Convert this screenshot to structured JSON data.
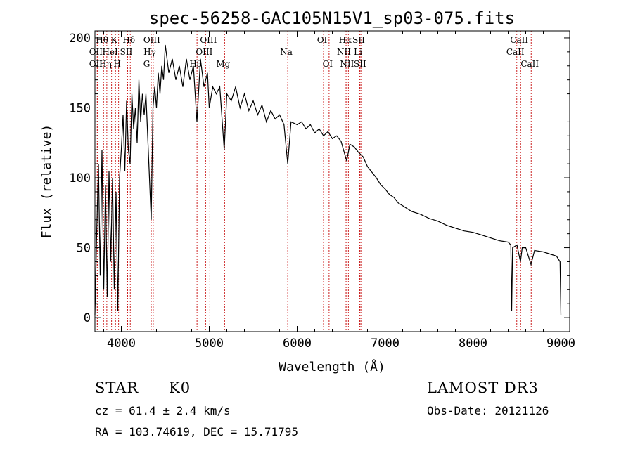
{
  "chart_data": {
    "type": "line",
    "title": "spec-56258-GAC105N15V1_sp03-075.fits",
    "xlabel": "Wavelength (Å)",
    "ylabel": "Flux (relative)",
    "xlim": [
      3700,
      9100
    ],
    "ylim": [
      -10,
      205
    ],
    "xticks": [
      4000,
      5000,
      6000,
      7000,
      8000,
      9000
    ],
    "yticks": [
      0,
      50,
      100,
      150,
      200
    ],
    "xtick_labels": [
      "4000",
      "5000",
      "6000",
      "7000",
      "8000",
      "9000"
    ],
    "ytick_labels": [
      "0",
      "50",
      "100",
      "150",
      "200"
    ],
    "series": [
      {
        "name": "spectrum",
        "points": [
          [
            3700,
            2
          ],
          [
            3720,
            60
          ],
          [
            3740,
            110
          ],
          [
            3760,
            30
          ],
          [
            3780,
            120
          ],
          [
            3800,
            20
          ],
          [
            3820,
            95
          ],
          [
            3840,
            15
          ],
          [
            3860,
            105
          ],
          [
            3880,
            40
          ],
          [
            3900,
            100
          ],
          [
            3920,
            20
          ],
          [
            3940,
            90
          ],
          [
            3960,
            5
          ],
          [
            3980,
            100
          ],
          [
            4000,
            120
          ],
          [
            4020,
            145
          ],
          [
            4040,
            105
          ],
          [
            4060,
            155
          ],
          [
            4080,
            120
          ],
          [
            4100,
            110
          ],
          [
            4120,
            160
          ],
          [
            4140,
            135
          ],
          [
            4160,
            150
          ],
          [
            4180,
            125
          ],
          [
            4200,
            170
          ],
          [
            4220,
            140
          ],
          [
            4240,
            160
          ],
          [
            4260,
            145
          ],
          [
            4280,
            160
          ],
          [
            4300,
            130
          ],
          [
            4320,
            100
          ],
          [
            4340,
            70
          ],
          [
            4360,
            150
          ],
          [
            4380,
            165
          ],
          [
            4400,
            150
          ],
          [
            4420,
            175
          ],
          [
            4440,
            160
          ],
          [
            4460,
            180
          ],
          [
            4480,
            170
          ],
          [
            4500,
            195
          ],
          [
            4540,
            175
          ],
          [
            4580,
            185
          ],
          [
            4620,
            170
          ],
          [
            4660,
            180
          ],
          [
            4700,
            165
          ],
          [
            4740,
            185
          ],
          [
            4780,
            170
          ],
          [
            4820,
            180
          ],
          [
            4860,
            140
          ],
          [
            4900,
            185
          ],
          [
            4940,
            165
          ],
          [
            4980,
            175
          ],
          [
            5000,
            150
          ],
          [
            5040,
            165
          ],
          [
            5080,
            160
          ],
          [
            5120,
            165
          ],
          [
            5170,
            120
          ],
          [
            5200,
            160
          ],
          [
            5250,
            155
          ],
          [
            5300,
            165
          ],
          [
            5350,
            150
          ],
          [
            5400,
            160
          ],
          [
            5450,
            148
          ],
          [
            5500,
            155
          ],
          [
            5550,
            145
          ],
          [
            5600,
            152
          ],
          [
            5650,
            140
          ],
          [
            5700,
            148
          ],
          [
            5750,
            142
          ],
          [
            5800,
            145
          ],
          [
            5850,
            138
          ],
          [
            5893,
            110
          ],
          [
            5930,
            140
          ],
          [
            6000,
            138
          ],
          [
            6050,
            140
          ],
          [
            6100,
            135
          ],
          [
            6150,
            138
          ],
          [
            6200,
            132
          ],
          [
            6250,
            135
          ],
          [
            6300,
            130
          ],
          [
            6350,
            133
          ],
          [
            6400,
            128
          ],
          [
            6450,
            130
          ],
          [
            6500,
            126
          ],
          [
            6563,
            112
          ],
          [
            6600,
            124
          ],
          [
            6650,
            122
          ],
          [
            6700,
            118
          ],
          [
            6750,
            115
          ],
          [
            6800,
            108
          ],
          [
            6850,
            104
          ],
          [
            6900,
            100
          ],
          [
            6950,
            95
          ],
          [
            7000,
            92
          ],
          [
            7050,
            88
          ],
          [
            7100,
            86
          ],
          [
            7150,
            82
          ],
          [
            7200,
            80
          ],
          [
            7300,
            76
          ],
          [
            7400,
            74
          ],
          [
            7500,
            71
          ],
          [
            7600,
            69
          ],
          [
            7700,
            66
          ],
          [
            7800,
            64
          ],
          [
            7900,
            62
          ],
          [
            8000,
            61
          ],
          [
            8100,
            59
          ],
          [
            8200,
            57
          ],
          [
            8300,
            55
          ],
          [
            8400,
            54
          ],
          [
            8430,
            52
          ],
          [
            8440,
            5
          ],
          [
            8450,
            50
          ],
          [
            8500,
            52
          ],
          [
            8540,
            40
          ],
          [
            8560,
            50
          ],
          [
            8600,
            50
          ],
          [
            8660,
            38
          ],
          [
            8700,
            48
          ],
          [
            8800,
            47
          ],
          [
            8900,
            45
          ],
          [
            8950,
            44
          ],
          [
            8990,
            40
          ],
          [
            9000,
            2
          ]
        ]
      }
    ],
    "line_markers": [
      {
        "label": "Hθ",
        "wavelength": 3798,
        "row": 0
      },
      {
        "label": "OII",
        "wavelength": 3727,
        "row": 1
      },
      {
        "label": "OII",
        "wavelength": 3727,
        "row": 2
      },
      {
        "label": "Hη",
        "wavelength": 3835,
        "row": 2
      },
      {
        "label": "K",
        "wavelength": 3934,
        "row": 0
      },
      {
        "label": "HeI",
        "wavelength": 3889,
        "row": 1
      },
      {
        "label": "H",
        "wavelength": 3969,
        "row": 2
      },
      {
        "label": "Hδ",
        "wavelength": 4102,
        "row": 0
      },
      {
        "label": "SII",
        "wavelength": 4072,
        "row": 1
      },
      {
        "label": "OIII",
        "wavelength": 4363,
        "row": 0
      },
      {
        "label": "Hγ",
        "wavelength": 4340,
        "row": 1
      },
      {
        "label": "G",
        "wavelength": 4304,
        "row": 2
      },
      {
        "label": "OIII",
        "wavelength": 5007,
        "row": 0
      },
      {
        "label": "OIII",
        "wavelength": 4959,
        "row": 1
      },
      {
        "label": "Hβ",
        "wavelength": 4861,
        "row": 2
      },
      {
        "label": "Mg",
        "wavelength": 5175,
        "row": 2
      },
      {
        "label": "Na",
        "wavelength": 5893,
        "row": 1
      },
      {
        "label": "OI",
        "wavelength": 6300,
        "row": 0
      },
      {
        "label": "OI",
        "wavelength": 6363,
        "row": 2
      },
      {
        "label": "Hα",
        "wavelength": 6563,
        "row": 0
      },
      {
        "label": "NII",
        "wavelength": 6548,
        "row": 1
      },
      {
        "label": "NII",
        "wavelength": 6583,
        "row": 2
      },
      {
        "label": "SII",
        "wavelength": 6716,
        "row": 0
      },
      {
        "label": "Li",
        "wavelength": 6708,
        "row": 1
      },
      {
        "label": "SII",
        "wavelength": 6731,
        "row": 2
      },
      {
        "label": "CaII",
        "wavelength": 8542,
        "row": 0
      },
      {
        "label": "CaII",
        "wavelength": 8498,
        "row": 1
      },
      {
        "label": "CaII",
        "wavelength": 8662,
        "row": 2
      }
    ]
  },
  "info": {
    "object_class": "STAR",
    "subclass": "K0",
    "survey": "LAMOST DR3",
    "cz": "cz = 61.4 ± 2.4 km/s",
    "obs_date": "Obs-Date: 20121126",
    "coords": "RA = 103.74619, DEC =  15.71795"
  },
  "colors": {
    "spectrum": "#000000",
    "marker_line": "#cc2222",
    "axis": "#000000"
  }
}
